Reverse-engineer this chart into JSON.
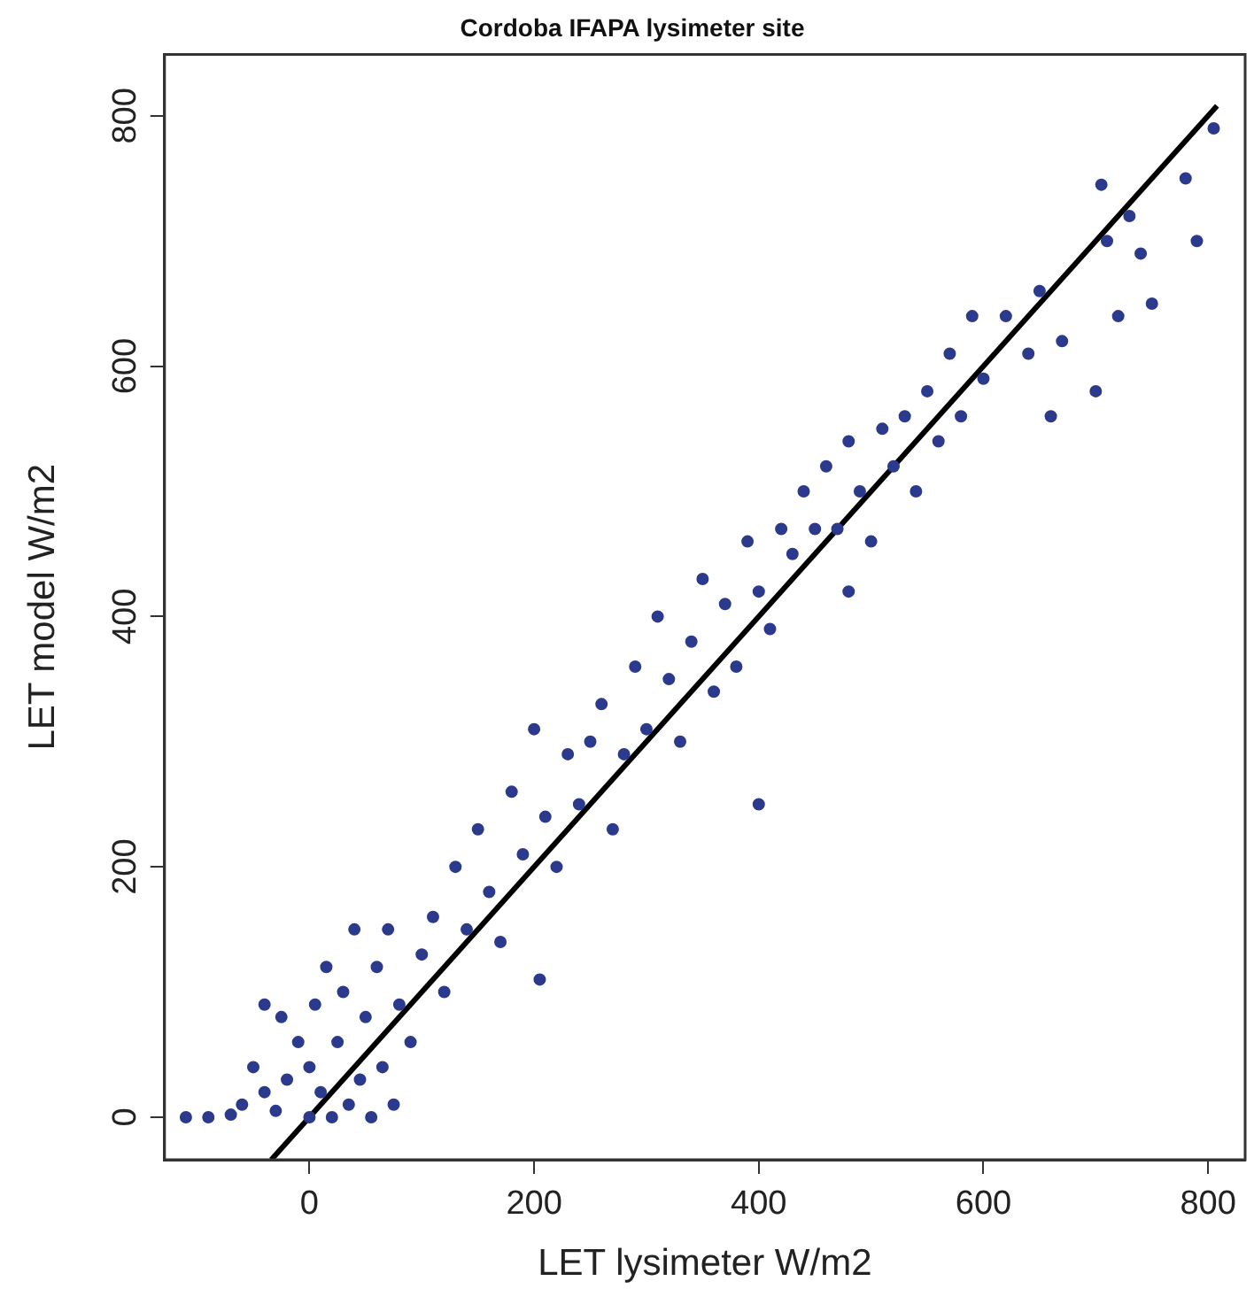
{
  "chart_data": {
    "type": "scatter",
    "title": "Cordoba IFAPA lysimeter site",
    "xlabel": "LET lysimeter W/m2",
    "ylabel": "LET model W/m2",
    "xlim": [
      -129,
      833
    ],
    "ylim": [
      -34,
      849
    ],
    "xticks": [
      0,
      200,
      400,
      600,
      800
    ],
    "yticks": [
      0,
      200,
      400,
      600,
      800
    ],
    "grid": false,
    "legend": false,
    "marker": "circle",
    "series": [
      {
        "color": "#2b3a8c",
        "x": [
          -110,
          -90,
          -70,
          -60,
          -50,
          -40,
          -30,
          -20,
          -10,
          0,
          0,
          5,
          10,
          15,
          20,
          25,
          30,
          35,
          40,
          45,
          50,
          55,
          60,
          65,
          70,
          75,
          80,
          -40,
          -25,
          90,
          100,
          110,
          120,
          130,
          140,
          150,
          160,
          170,
          180,
          190,
          200,
          205,
          210,
          220,
          230,
          240,
          250,
          260,
          270,
          280,
          290,
          300,
          310,
          320,
          330,
          340,
          350,
          360,
          370,
          380,
          390,
          400,
          410,
          420,
          430,
          440,
          450,
          460,
          470,
          480,
          490,
          500,
          510,
          520,
          530,
          540,
          550,
          560,
          570,
          580,
          590,
          600,
          620,
          640,
          650,
          660,
          670,
          700,
          705,
          710,
          720,
          730,
          740,
          750,
          780,
          790,
          805,
          400,
          480
        ],
        "values": [
          0,
          0,
          2,
          10,
          40,
          20,
          5,
          30,
          60,
          0,
          40,
          90,
          20,
          120,
          0,
          60,
          100,
          10,
          150,
          30,
          80,
          0,
          120,
          40,
          150,
          10,
          90,
          90,
          80,
          60,
          130,
          160,
          100,
          200,
          150,
          230,
          180,
          140,
          260,
          210,
          310,
          110,
          240,
          200,
          290,
          250,
          300,
          330,
          230,
          290,
          360,
          310,
          400,
          350,
          300,
          380,
          430,
          340,
          410,
          360,
          460,
          420,
          390,
          470,
          450,
          500,
          470,
          520,
          470,
          540,
          500,
          460,
          550,
          520,
          560,
          500,
          580,
          540,
          610,
          560,
          640,
          590,
          640,
          610,
          660,
          560,
          620,
          580,
          745,
          700,
          640,
          720,
          690,
          650,
          750,
          700,
          790,
          250,
          420
        ]
      },
      {
        "type": "line",
        "color": "#000000",
        "marker": "none",
        "x": [
          -34,
          808
        ],
        "values": [
          -34,
          808
        ]
      }
    ]
  }
}
